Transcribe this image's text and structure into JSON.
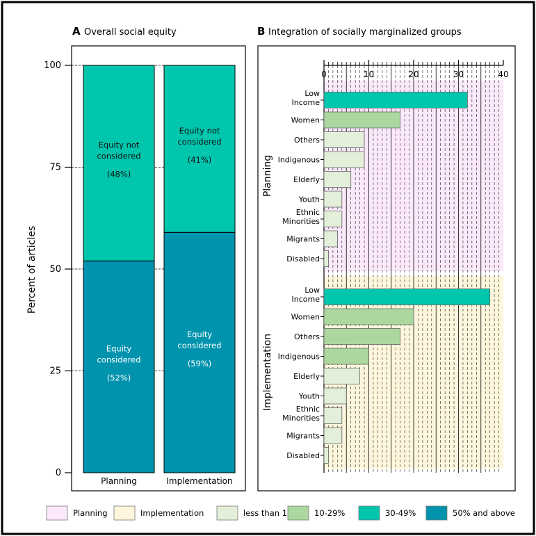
{
  "colors": {
    "planning_bg": "#fbe9fb",
    "implementation_bg": "#fdf6dc",
    "less_than_10": "#e3efd9",
    "p10_29": "#acd8a0",
    "p30_49": "#00c6ae",
    "p50_above": "#0093ae",
    "frame": "#000000"
  },
  "chart_data": [
    {
      "panel": "A",
      "type": "bar",
      "stacked": true,
      "title": "Overall social equity",
      "ylabel": "Percent of articles",
      "ylim": [
        0,
        100
      ],
      "yticks": [
        "0",
        "25",
        "50",
        "75",
        "100"
      ],
      "categories": [
        "Planning",
        "Implementation"
      ],
      "series": [
        {
          "values": [
            52,
            59
          ],
          "labels": [
            {
              "text": "Equity considered",
              "pct": "(52%)"
            },
            {
              "text": "Equity considered",
              "pct": "(59%)"
            }
          ]
        },
        {
          "values": [
            48,
            41
          ],
          "labels": [
            {
              "text": "Equity not considered",
              "pct": "(48%)"
            },
            {
              "text": "Equity not considered",
              "pct": "(41%)"
            }
          ]
        }
      ]
    },
    {
      "panel": "B",
      "type": "bar",
      "orientation": "horizontal",
      "title": "Integration of socially marginalized groups",
      "xlim": [
        0,
        40
      ],
      "xticks": [
        "0",
        "10",
        "20",
        "30",
        "40"
      ],
      "groups": [
        {
          "name": "Planning",
          "categories": [
            "Low Income",
            "Women",
            "Others",
            "Indigenous",
            "Elderly",
            "Youth",
            "Ethnic Minorities",
            "Migrants",
            "Disabled"
          ],
          "values": [
            32,
            17,
            9,
            9,
            6,
            4,
            4,
            3,
            1
          ],
          "bands": [
            "30-49%",
            "10-29%",
            "less than 10%",
            "less than 10%",
            "less than 10%",
            "less than 10%",
            "less than 10%",
            "less than 10%",
            "less than 10%"
          ]
        },
        {
          "name": "Implementation",
          "categories": [
            "Low Income",
            "Women",
            "Others",
            "Indigenous",
            "Elderly",
            "Youth",
            "Ethnic Minorities",
            "Migrants",
            "Disabled"
          ],
          "values": [
            37,
            20,
            17,
            10,
            8,
            5,
            4,
            4,
            1
          ],
          "bands": [
            "30-49%",
            "10-29%",
            "10-29%",
            "10-29%",
            "less than 10%",
            "less than 10%",
            "less than 10%",
            "less than 10%",
            "less than 10%"
          ]
        }
      ]
    }
  ],
  "legend": [
    {
      "label": "Planning",
      "color": "#fbe9fb"
    },
    {
      "label": "Implementation",
      "color": "#fdf6dc"
    },
    {
      "label": "less than 10%",
      "color": "#e3efd9"
    },
    {
      "label": "10-29%",
      "color": "#acd8a0"
    },
    {
      "label": "30-49%",
      "color": "#00c6ae"
    },
    {
      "label": "50% and above",
      "color": "#0093ae"
    }
  ]
}
